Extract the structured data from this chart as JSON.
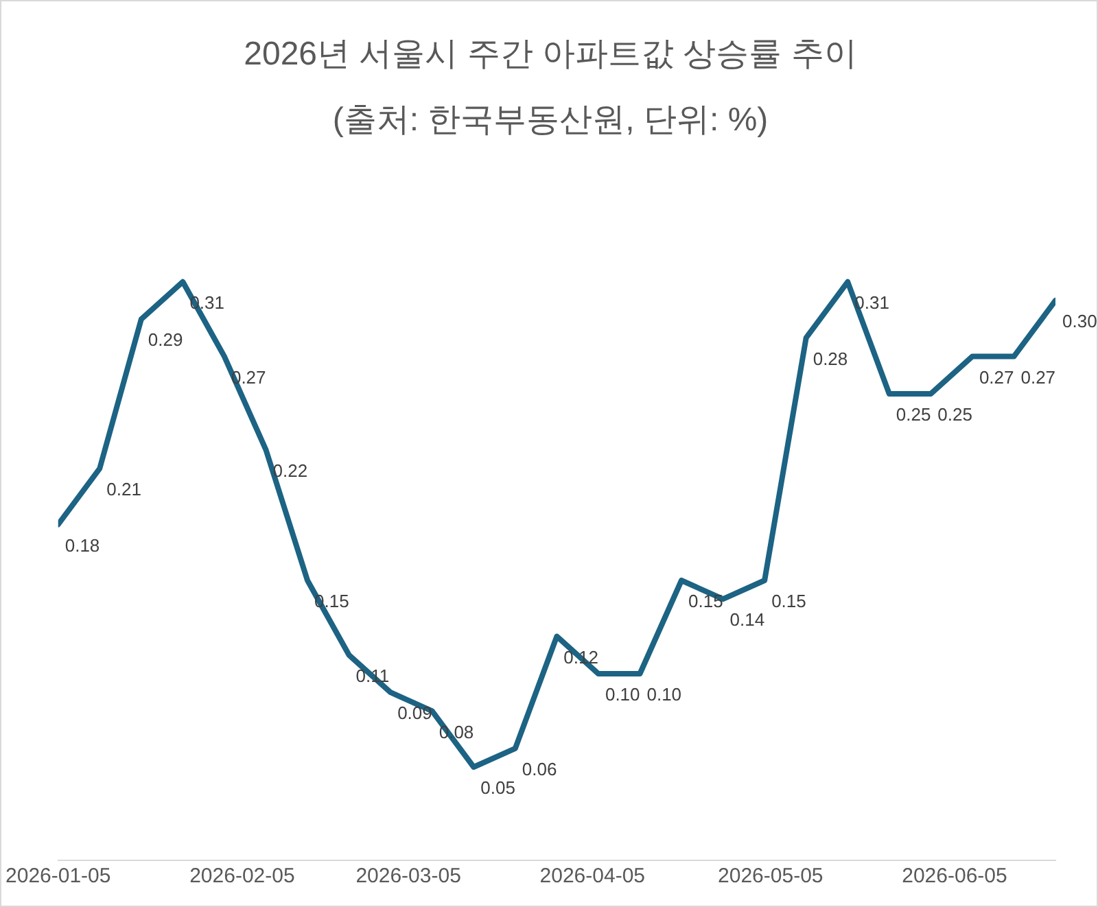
{
  "chart_data": {
    "type": "line",
    "title": "2026년 서울시 주간 아파트값 상승률 추이",
    "subtitle": "(출처: 한국부동산원, 단위: %)",
    "x": [
      "2026-01-05",
      "2026-01-12",
      "2026-01-19",
      "2026-01-26",
      "2026-02-02",
      "2026-02-09",
      "2026-02-16",
      "2026-02-23",
      "2026-03-02",
      "2026-03-09",
      "2026-03-16",
      "2026-03-23",
      "2026-03-30",
      "2026-04-06",
      "2026-04-13",
      "2026-04-20",
      "2026-04-27",
      "2026-05-04",
      "2026-05-11",
      "2026-05-18",
      "2026-05-25",
      "2026-06-01",
      "2026-06-08",
      "2026-06-15",
      "2026-06-22"
    ],
    "series": [
      {
        "color": "#1c6384",
        "values": [
          0.18,
          0.21,
          0.29,
          0.31,
          0.27,
          0.22,
          0.15,
          0.11,
          0.09,
          0.08,
          0.05,
          0.06,
          0.12,
          0.1,
          0.1,
          0.15,
          0.14,
          0.15,
          0.28,
          0.31,
          0.25,
          0.25,
          0.27,
          0.27,
          0.3
        ],
        "value_labels": [
          "0.18",
          "0.21",
          "0.29",
          "0.31",
          "0.27",
          "0.22",
          "0.15",
          "0.11",
          "0.09",
          "0.08",
          "0.05",
          "0.06",
          "0.12",
          "0.10",
          "0.10",
          "0.15",
          "0.14",
          "0.15",
          "0.28",
          "0.31",
          "0.25",
          "0.25",
          "0.27",
          "0.27",
          "0.30"
        ]
      }
    ],
    "xlim": [
      "2026-01-05",
      "2026-06-22"
    ],
    "xticks": [
      "2026-01-05",
      "2026-02-05",
      "2026-03-05",
      "2026-04-05",
      "2026-05-05",
      "2026-06-05"
    ],
    "tick_labels": "x",
    "grid": false,
    "legend": false,
    "marker": "none",
    "line_style": "solid"
  }
}
